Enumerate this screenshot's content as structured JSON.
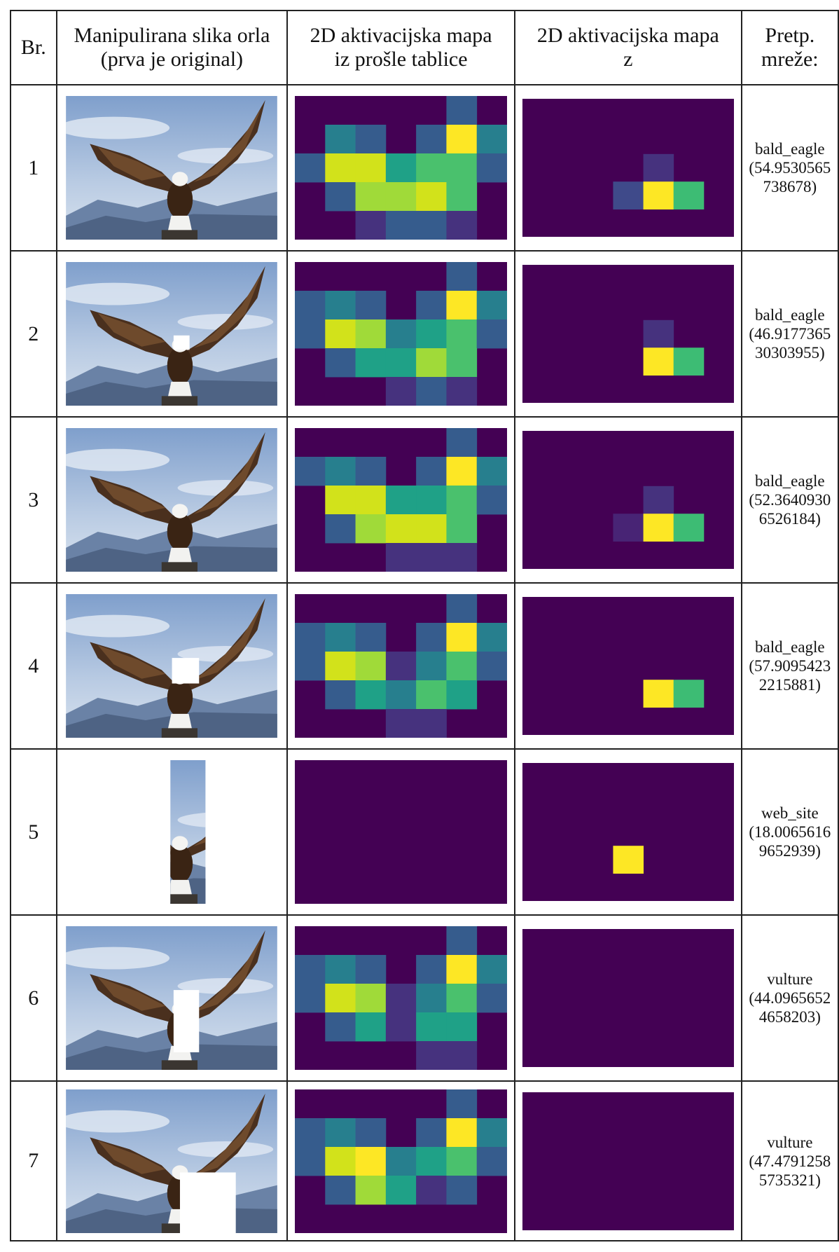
{
  "header": {
    "columns": [
      [
        "Br."
      ],
      [
        "Manipulirana slika orla",
        "(prva je original)"
      ],
      [
        "2D aktivacijska mapa",
        "iz prošle tablice"
      ],
      [
        "2D aktivacijska mapa",
        "z"
      ],
      [
        "Pretp.",
        "mreže:"
      ]
    ]
  },
  "rows": [
    {
      "number": "1",
      "label": "bald_eagle",
      "score": "(54.9530565738678)"
    },
    {
      "number": "2",
      "label": "bald_eagle",
      "score": "(46.917736530303955)"
    },
    {
      "number": "3",
      "label": "bald_eagle",
      "score": "(52.36409306526184)"
    },
    {
      "number": "4",
      "label": "bald_eagle",
      "score": "(57.90954232215881)"
    },
    {
      "number": "5",
      "label": "web_site",
      "score": "(18.00656169652939)"
    },
    {
      "number": "6",
      "label": "vulture",
      "score": "(44.09656524658203)"
    },
    {
      "number": "7",
      "label": "vulture",
      "score": "(47.47912585735321)"
    }
  ]
}
